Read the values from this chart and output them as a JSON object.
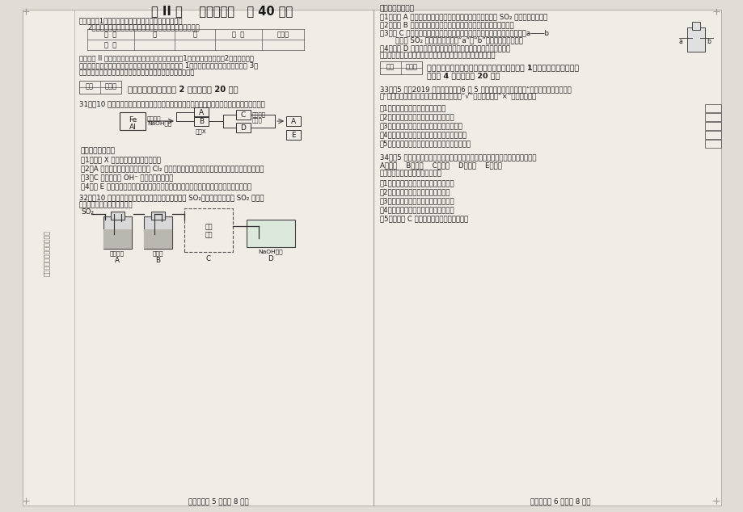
{
  "title": "第 II 卷    （非选择题   共 40 分）",
  "bg_color": "#e0ddd6",
  "paper_bg": "#f0ede6",
  "left_notes_1": "注意事项：1．答题前将密封线内的各项内容填写清楚。",
  "left_notes_2": "2．用蓝、黑色呀水笔或圆珠笔将答案直接答在相应的位置。",
  "table_headers": [
    "题  号",
    "一",
    "二",
    "总  分",
    "总分人"
  ],
  "table_row0": [
    "分  数",
    "",
    "",
    "",
    ""
  ],
  "hint_line1": "提示：第 II 卷分为必答题和选答题。必答题包括《化学1》（必修）和《化学2》（必修）模",
  "hint_line2": "块，为所有考生必答；选答题包括《化学与生活》（选修 1）、《物质结构与性质》（选修 3）",
  "hint_line3": "两个模块和部分计算内容，考生根据选修的模块选择其一作答。",
  "score_label": "得分",
  "reviewer_label": "评卷人",
  "section1_title": "一、必答题（本题包括 2 个小题，共 20 分）",
  "q31_line": "31．（10 分）铝、铁是人们广泛使用的金属，某化学兴趣小组用铝、铁的混合物进行如下实验。",
  "flow_fe": "Fe",
  "flow_al": "Al",
  "flow_naoh1": "加入足量",
  "flow_naoh2": "NaOH溶液",
  "flow_A": "A",
  "flow_B": "B",
  "flow_operX": "操作X",
  "flow_C": "C",
  "flow_D": "D",
  "flow_hcl1": "加入足量",
  "flow_hcl2": "稀盐酸",
  "flow_A2": "A",
  "flow_E": "E",
  "q31_intro": "请回答下列问题：",
  "q31_sub1": "（1）操作 X 包括＿＿＿＿＿＿、洗涤。",
  "q31_sub2": "（2）A 的化学式是＿＿＿＿，它在 Cl₂ 中燃烧的现象是＿＿＿＿＿＿＿＿＿＿＿＿＿＿＿＿。",
  "q31_sub3": "（3）C 中阴离子除 OH⁻ 外还有＿＿＿＿。",
  "q31_sub4": "（4）向 E 中滴加氯水，反应的化学方程式是＿＿＿＿＿＿＿＿＿＿＿＿＿＿＿＿＿＿＿。",
  "q32_line1": "32．（10 分）某校课外活动小组在实验室制取、收集 SO₂，并设计实验探究 SO₂ 的某些",
  "q32_line2": "性质，部分装置如下图所示。",
  "q32_so2": "SO₂",
  "q32_coll": "收集",
  "q32_coll2": "装置",
  "q32_label_A": "品红溶液",
  "q32_label_B": "浓硫酸",
  "q32_label_D": "NaOH溶液",
  "q32_letter_A": "A",
  "q32_letter_B": "B",
  "q32_letter_C": "C",
  "q32_letter_D": "D",
  "footer_left": "化学试卷第 5 页（共 8 页）",
  "right_intro": "请回答下列问题：",
  "rq1": "（1）装置 A 中观察到的现象是＿＿＿＿＿＿＿＿＿＿、说明 SO₂ 具有＿＿＿＿＿。",
  "rq2": "（2）装置 B 中浓硫酸的作用是＿＿＿＿＿＿＿＿＿＿＿＿＿＿＿＿。",
  "rq3a": "（3）在 C 处，甲、乙两同学都选用右图装置，但对进该方式持有不同意见。a――b",
  "rq3b": "       你认为 SO₂ 应从＿＿＿＿（填“a”或“b”）处通入集气瓶中。",
  "rq4a": "（4）装置 D 的作用是＿＿＿＿＿＿＿＿＿＿＿＿＿＿＿＿＿、发生",
  "rq4b": "反应的离子方程式是＿＿＿＿＿＿＿＿＿＿＿＿＿＿＿＿＿＿。",
  "section2_line1": "二、选答题（一）供选修《化学与生活》（选修 1）模块的考生作答（本",
  "section2_line2": "题包括 4 个小题，共 20 分）",
  "q33_line1": "33．（5 分）2019 年世界环境日（6 月 5 日）在我国的活动主题是“蓝天保卫战，我是行动",
  "q33_line2": "者”。请判断下列说法是否正确（在括号内填“√”表示正确，填“×”表示错误）。",
  "q33_items": [
    "（1）低碳出行有利于改善大气质量",
    "（2）禁止燃放烟花爆竹可减轻大气污染",
    "（3）露天焚烧垃圾不会产生污染空气的物质",
    "（4）逐步停止使用氟氯代烃可保护大气臭氧层",
    "（5）居室装修选用达标材料可减少室内空气污染"
  ],
  "q34_line": "34．（5 分）粽子是大家熟惉的端午节庆食物，制作粽子会用到的部分原料如下：",
  "q34_options": "A．糯米    B．菠萝    C．鲜肉    D．粽叶    E．味精",
  "q34_intro": "请选用合理答案的字母序号填空。",
  "q34_items": [
    "（1）富含淠粉的是＿＿＿＿＿＿＿＿。",
    "（2）富含蛋白质的是＿＿＿＿＿＿。",
    "（3）富含纤维素的是＿＿＿＿＿＿＿。",
    "（4）属于调味剂的是＿＿＿＿＿＿＿。",
    "（5）维生素 C 含量最高的是＿＿＿＿＿＿。"
  ],
  "footer_right": "化学试卷第 6 页（共 8 页）",
  "side_text": "题号粘贴长条形密封答题纸"
}
